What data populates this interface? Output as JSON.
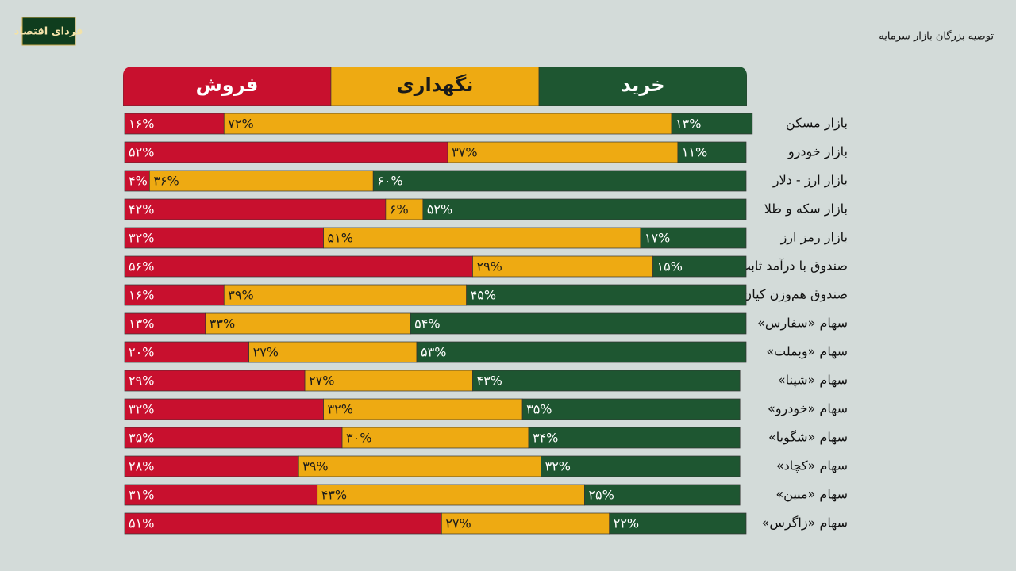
{
  "logo": "فردای اقتصاد",
  "chart_data": {
    "type": "stacked-bar",
    "title": "توصیه بزرگان بازار سرمایه",
    "xlim": [
      0,
      100
    ],
    "categories": [
      "بازار مسکن",
      "بازار خودرو",
      "بازار ارز - دلار",
      "بازار سکه و طلا",
      "بازار رمز ارز",
      "صندوق با درآمد ثابت",
      "صندوق هم‌وزن کیان",
      "سهام «سفارس»",
      "سهام «وبملت»",
      "سهام «شپنا»",
      "سهام «خودرو»",
      "سهام «شگویا»",
      "سهام «کچاد»",
      "سهام «مبین»",
      "سهام «زاگرس»"
    ],
    "series": [
      {
        "name": "فروش",
        "color": "#c8102e",
        "label_color": "#ffffff",
        "values": [
          16,
          52,
          4,
          42,
          32,
          56,
          16,
          13,
          20,
          29,
          32,
          35,
          28,
          31,
          51
        ],
        "value_labels": [
          "۱۶%",
          "۵۲%",
          "۴%",
          "۴۲%",
          "۳۲%",
          "۵۶%",
          "۱۶%",
          "۱۳%",
          "۲۰%",
          "۲۹%",
          "۳۲%",
          "۳۵%",
          "۲۸%",
          "۳۱%",
          "۵۱%"
        ]
      },
      {
        "name": "نگهداری",
        "color": "#eeaa12",
        "label_color": "#1a1a1a",
        "values": [
          72,
          37,
          36,
          6,
          51,
          29,
          39,
          33,
          27,
          27,
          32,
          30,
          39,
          43,
          27
        ],
        "value_labels": [
          "۷۲%",
          "۳۷%",
          "۳۶%",
          "۶%",
          "۵۱%",
          "۲۹%",
          "۳۹%",
          "۳۳%",
          "۲۷%",
          "۲۷%",
          "۳۲%",
          "۳۰%",
          "۳۹%",
          "۴۳%",
          "۲۷%"
        ]
      },
      {
        "name": "خرید",
        "color": "#1e5631",
        "label_color": "#ffffff",
        "values": [
          13,
          11,
          60,
          52,
          17,
          15,
          45,
          54,
          53,
          43,
          35,
          34,
          32,
          25,
          22
        ],
        "value_labels": [
          "۱۳%",
          "۱۱%",
          "۶۰%",
          "۵۲%",
          "۱۷%",
          "۱۵%",
          "۴۵%",
          "۵۴%",
          "۵۳%",
          "۴۳%",
          "۳۵%",
          "۳۴%",
          "۳۲%",
          "۲۵%",
          "۲۲%"
        ]
      }
    ]
  }
}
